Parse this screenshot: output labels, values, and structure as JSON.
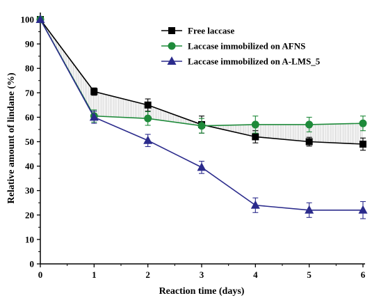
{
  "chart_data": {
    "type": "line",
    "xlabel": "Reaction time (days)",
    "ylabel": "Relative amount of lindane (%)",
    "xlim": [
      0,
      6
    ],
    "ylim": [
      0,
      100
    ],
    "x": [
      0,
      1,
      2,
      3,
      4,
      5,
      6
    ],
    "xticks": [
      "0",
      "1",
      "2",
      "3",
      "4",
      "5",
      "6"
    ],
    "yticks": [
      "0",
      "10",
      "20",
      "30",
      "40",
      "50",
      "60",
      "70",
      "80",
      "90",
      "100"
    ],
    "grid": false,
    "legend_position": "top-right",
    "series": [
      {
        "name": "Free laccase",
        "color": "#000000",
        "marker": "square",
        "values": [
          100,
          70.5,
          65,
          57,
          52,
          50,
          49
        ],
        "errors": [
          0,
          1.5,
          2.5,
          3.5,
          2.5,
          1.8,
          2.5
        ]
      },
      {
        "name": "Laccase immobilized on AFNS",
        "color": "#1e8a3a",
        "marker": "circle",
        "values": [
          100,
          60.5,
          59.5,
          56.5,
          57,
          57,
          57.5
        ],
        "errors": [
          0,
          2.5,
          2.8,
          3,
          3.5,
          3,
          3
        ]
      },
      {
        "name": "Laccase immobilized on A-LMS_5",
        "color": "#2b2b8c",
        "marker": "triangle",
        "values": [
          100,
          60,
          50.5,
          39.5,
          24,
          22,
          22
        ],
        "errors": [
          0,
          2.5,
          2.5,
          2.5,
          3,
          3,
          3.5
        ]
      }
    ]
  }
}
